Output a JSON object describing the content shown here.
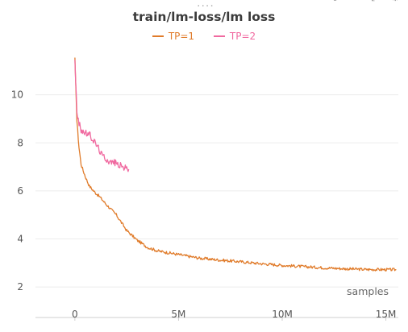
{
  "panel": {
    "dots": "....",
    "toolbar_icons": [
      "export-icon",
      "edit-icon",
      "expand-icon",
      "settings-icon"
    ]
  },
  "chart_data": {
    "type": "line",
    "title": "train/lm-loss/lm loss",
    "xlabel": "samples",
    "ylabel": "",
    "xlim": [
      -1900000,
      15600000
    ],
    "ylim": [
      1.2,
      12
    ],
    "x_ticks": [
      0,
      5000000,
      10000000,
      15000000
    ],
    "x_tick_labels": [
      "0",
      "5M",
      "10M",
      "15M"
    ],
    "y_ticks": [
      2,
      4,
      6,
      8,
      10
    ],
    "y_tick_labels": [
      "2",
      "4",
      "6",
      "8",
      "10"
    ],
    "grid": "horizontal",
    "legend_position": "top-center",
    "series": [
      {
        "name": "TP=1",
        "color": "#e07b2a",
        "x": [
          0,
          100000,
          200000,
          300000,
          500000,
          700000,
          900000,
          1200000,
          1500000,
          2000000,
          2500000,
          3000000,
          3500000,
          4000000,
          5000000,
          6000000,
          7000000,
          8000000,
          9000000,
          10000000,
          11000000,
          12000000,
          13000000,
          14000000,
          15500000
        ],
        "y": [
          11.5,
          8.9,
          7.8,
          7.1,
          6.6,
          6.2,
          6.0,
          5.75,
          5.45,
          5.0,
          4.35,
          3.95,
          3.65,
          3.5,
          3.35,
          3.2,
          3.12,
          3.05,
          2.97,
          2.9,
          2.85,
          2.8,
          2.76,
          2.73,
          2.72
        ]
      },
      {
        "name": "TP=2",
        "color": "#f06aa0",
        "x": [
          0,
          100000,
          200000,
          300000,
          500000,
          700000,
          900000,
          1100000,
          1300000,
          1500000,
          1700000,
          1900000,
          2100000,
          2300000,
          2600000
        ],
        "y": [
          11.5,
          9.2,
          8.8,
          8.55,
          8.4,
          8.35,
          8.1,
          7.85,
          7.5,
          7.35,
          7.2,
          7.2,
          7.1,
          7.0,
          6.9
        ]
      }
    ]
  }
}
